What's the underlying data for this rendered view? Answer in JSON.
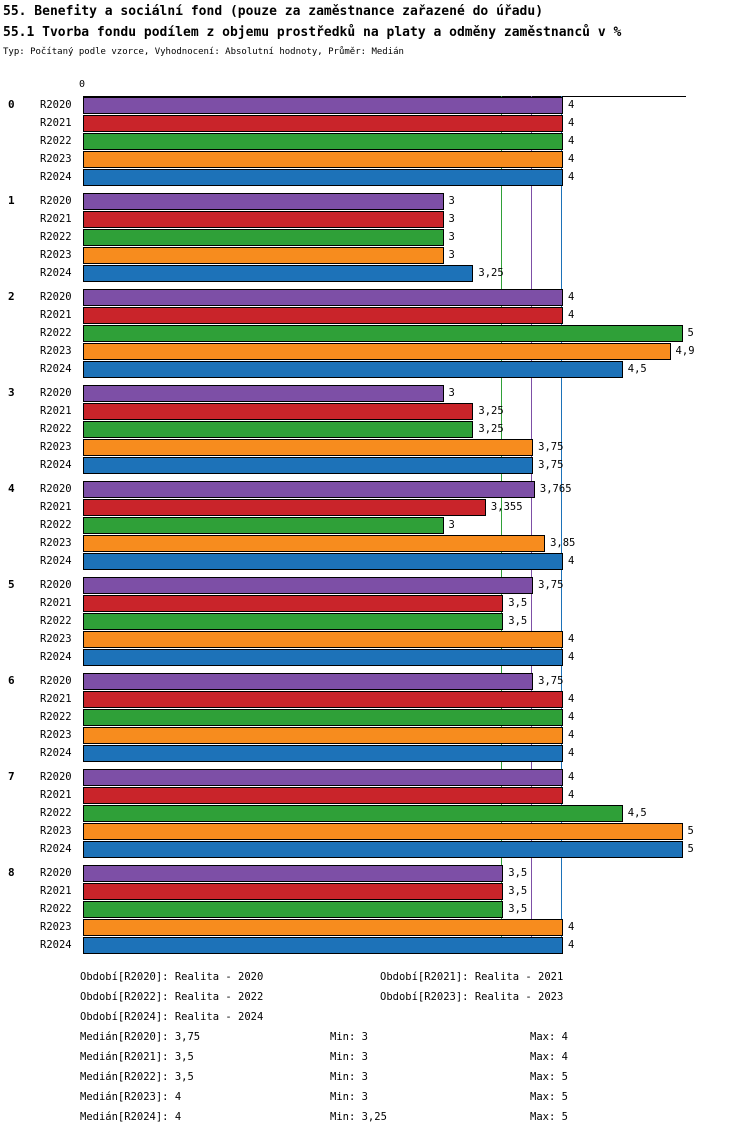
{
  "header": {
    "title1": "55. Benefity a sociální fond (pouze za zaměstnance zařazené do úřadu)",
    "title2": "55.1 Tvorba fondu podílem z objemu prostředků na platy a odměny zaměstnanců v %",
    "subtitle": "Typ: Počítaný podle vzorce, Vyhodnocení: Absolutní hodnoty, Průměr: Medián"
  },
  "chart_data": {
    "type": "bar",
    "orientation": "horizontal",
    "title": "55.1 Tvorba fondu podílem z objemu prostředků na platy a odměny zaměstnanců v %",
    "xlabel": "",
    "ylabel": "",
    "axis": {
      "origin_label": "0",
      "xmin": 0,
      "xmax": 5.05,
      "grid": false
    },
    "series_labels": [
      "R2020",
      "R2021",
      "R2022",
      "R2023",
      "R2024"
    ],
    "series_colors": [
      "#7d4fa6",
      "#c9242a",
      "#2fa038",
      "#f78c1e",
      "#1d72b8"
    ],
    "groups": [
      {
        "label": "0",
        "values": [
          4,
          4,
          4,
          4,
          4
        ],
        "value_labels": [
          "4",
          "4",
          "4",
          "4",
          "4"
        ]
      },
      {
        "label": "1",
        "values": [
          3,
          3,
          3,
          3,
          3.25
        ],
        "value_labels": [
          "3",
          "3",
          "3",
          "3",
          "3,25"
        ]
      },
      {
        "label": "2",
        "values": [
          4,
          4,
          5,
          4.9,
          4.5
        ],
        "value_labels": [
          "4",
          "4",
          "5",
          "4,9",
          "4,5"
        ]
      },
      {
        "label": "3",
        "values": [
          3,
          3.25,
          3.25,
          3.75,
          3.75
        ],
        "value_labels": [
          "3",
          "3,25",
          "3,25",
          "3,75",
          "3,75"
        ]
      },
      {
        "label": "4",
        "values": [
          3.765,
          3.355,
          3,
          3.85,
          4
        ],
        "value_labels": [
          "3,765",
          "3,355",
          "3",
          "3,85",
          "4"
        ]
      },
      {
        "label": "5",
        "values": [
          3.75,
          3.5,
          3.5,
          4,
          4
        ],
        "value_labels": [
          "3,75",
          "3,5",
          "3,5",
          "4",
          "4"
        ]
      },
      {
        "label": "6",
        "values": [
          3.75,
          4,
          4,
          4,
          4
        ],
        "value_labels": [
          "3,75",
          "4",
          "4",
          "4",
          "4"
        ]
      },
      {
        "label": "7",
        "values": [
          4,
          4,
          4.5,
          5,
          5
        ],
        "value_labels": [
          "4",
          "4",
          "4,5",
          "5",
          "5"
        ]
      },
      {
        "label": "8",
        "values": [
          3.5,
          3.5,
          3.5,
          4,
          4
        ],
        "value_labels": [
          "3,5",
          "3,5",
          "3,5",
          "4",
          "4"
        ]
      }
    ],
    "median_lines": [
      {
        "series": "R2020",
        "value": 3.75,
        "color": "#7d4fa6"
      },
      {
        "series": "R2021",
        "value": 3.5,
        "color": "#c9242a"
      },
      {
        "series": "R2022",
        "value": 3.5,
        "color": "#2fa038"
      },
      {
        "series": "R2023",
        "value": 4,
        "color": "#f78c1e"
      },
      {
        "series": "R2024",
        "value": 4,
        "color": "#1d72b8"
      }
    ]
  },
  "legend": {
    "period_rows": [
      [
        "Období[R2020]: Realita - 2020",
        "Období[R2021]: Realita - 2021"
      ],
      [
        "Období[R2022]: Realita - 2022",
        "Období[R2023]: Realita - 2023"
      ],
      [
        "Období[R2024]: Realita - 2024",
        ""
      ]
    ],
    "stat_rows": [
      [
        "Medián[R2020]: 3,75",
        "Min: 3",
        "Max: 4"
      ],
      [
        "Medián[R2021]: 3,5",
        "Min: 3",
        "Max: 4"
      ],
      [
        "Medián[R2022]: 3,5",
        "Min: 3",
        "Max: 5"
      ],
      [
        "Medián[R2023]: 4",
        "Min: 3",
        "Max: 5"
      ],
      [
        "Medián[R2024]: 4",
        "Min: 3,25",
        "Max: 5"
      ]
    ]
  }
}
